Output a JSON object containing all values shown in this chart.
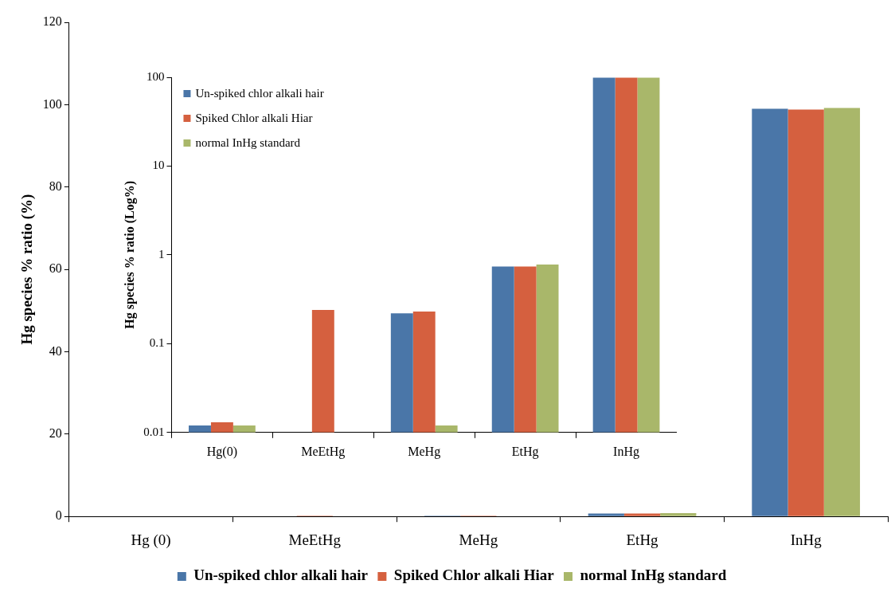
{
  "chart_data": [
    {
      "type": "bar",
      "ylabel": "Hg species % ratio (%)",
      "categories": [
        "Hg (0)",
        "MeEtHg",
        "MeHg",
        "EtHg",
        "InHg"
      ],
      "series": [
        {
          "name": "Un-spiked chlor alkali hair",
          "color": "#4a76a8",
          "values": [
            null,
            null,
            0.2,
            0.7,
            99.0
          ]
        },
        {
          "name": "Spiked Chlor alkali Hiar",
          "color": "#d5603f",
          "values": [
            null,
            0.2,
            0.2,
            0.7,
            98.8
          ]
        },
        {
          "name": "normal InHg standard",
          "color": "#a9b76a",
          "values": [
            null,
            null,
            null,
            0.8,
            99.2
          ]
        }
      ],
      "ylim": [
        0,
        120
      ],
      "yticks": [
        0,
        20,
        40,
        60,
        80,
        100,
        120
      ],
      "grid": false,
      "legend": "bottom"
    },
    {
      "type": "bar",
      "ylabel": "Hg species % ratio (Log%)",
      "categories": [
        "Hg(0)",
        "MeEtHg",
        "MeHg",
        "EtHg",
        "InHg"
      ],
      "series": [
        {
          "name": "Un-spiked chlor alkali hair",
          "color": "#4a76a8",
          "values": [
            0.012,
            null,
            0.22,
            0.74,
            99.0
          ]
        },
        {
          "name": "Spiked Chlor alkali Hiar",
          "color": "#d5603f",
          "values": [
            0.013,
            0.24,
            0.23,
            0.74,
            98.8
          ]
        },
        {
          "name": "normal InHg standard",
          "color": "#a9b76a",
          "values": [
            0.012,
            null,
            0.012,
            0.78,
            99.2
          ]
        }
      ],
      "log": true,
      "ylim": [
        0.01,
        100
      ],
      "yticks": [
        0.01,
        0.1,
        1,
        10,
        100
      ],
      "grid": false,
      "legend": "top left"
    }
  ]
}
